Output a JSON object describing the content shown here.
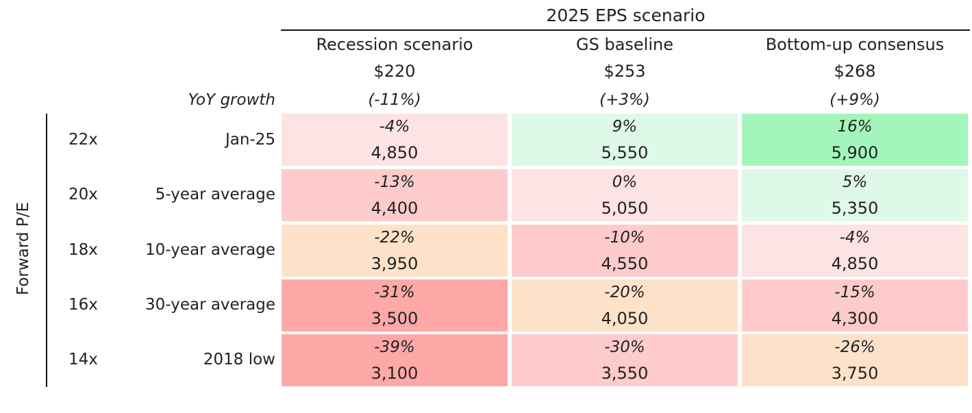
{
  "header": {
    "title": "2025 EPS scenario",
    "yoy_label": "YoY growth"
  },
  "axis": {
    "label": "Forward P/E"
  },
  "columns": [
    {
      "name": "Recession scenario",
      "eps": "$220",
      "growth": "(-11%)"
    },
    {
      "name": "GS baseline",
      "eps": "$253",
      "growth": "(+3%)"
    },
    {
      "name": "Bottom-up consensus",
      "eps": "$268",
      "growth": "(+9%)"
    }
  ],
  "rows": [
    {
      "pe": "22x",
      "label": "Jan-25"
    },
    {
      "pe": "20x",
      "label": "5-year average"
    },
    {
      "pe": "18x",
      "label": "10-year average"
    },
    {
      "pe": "16x",
      "label": "30-year average"
    },
    {
      "pe": "14x",
      "label": "2018 low"
    }
  ],
  "cells": [
    [
      {
        "pct": "-4%",
        "level": "4,850",
        "color": "#fde3e3"
      },
      {
        "pct": "9%",
        "level": "5,550",
        "color": "#dff9e8"
      },
      {
        "pct": "16%",
        "level": "5,900",
        "color": "#a3f5bb"
      }
    ],
    [
      {
        "pct": "-13%",
        "level": "4,400",
        "color": "#fecbcc"
      },
      {
        "pct": "0%",
        "level": "5,050",
        "color": "#fde3e3"
      },
      {
        "pct": "5%",
        "level": "5,350",
        "color": "#dff9e8"
      }
    ],
    [
      {
        "pct": "-22%",
        "level": "3,950",
        "color": "#fde2c9"
      },
      {
        "pct": "-10%",
        "level": "4,550",
        "color": "#fecbcc"
      },
      {
        "pct": "-4%",
        "level": "4,850",
        "color": "#fde3e3"
      }
    ],
    [
      {
        "pct": "-31%",
        "level": "3,500",
        "color": "#fea8a8"
      },
      {
        "pct": "-20%",
        "level": "4,050",
        "color": "#fde2c9"
      },
      {
        "pct": "-15%",
        "level": "4,300",
        "color": "#fecbcc"
      }
    ],
    [
      {
        "pct": "-39%",
        "level": "3,100",
        "color": "#fea8a8"
      },
      {
        "pct": "-30%",
        "level": "3,550",
        "color": "#fecbcc"
      },
      {
        "pct": "-26%",
        "level": "3,750",
        "color": "#fde2c9"
      }
    ]
  ],
  "chart_data": {
    "type": "heatmap",
    "title": "2025 EPS scenario",
    "x_categories": [
      "Recession scenario",
      "GS baseline",
      "Bottom-up consensus"
    ],
    "x_eps": [
      220,
      253,
      268
    ],
    "x_yoy_growth_pct": [
      -11,
      3,
      9
    ],
    "y_label": "Forward P/E",
    "y_multiples": [
      "22x",
      "20x",
      "18x",
      "16x",
      "14x"
    ],
    "y_categories": [
      "Jan-25",
      "5-year average",
      "10-year average",
      "30-year average",
      "2018 low"
    ],
    "index_levels": [
      [
        4850,
        5550,
        5900
      ],
      [
        4400,
        5050,
        5350
      ],
      [
        3950,
        4550,
        4850
      ],
      [
        3500,
        4050,
        4300
      ],
      [
        3100,
        3550,
        3750
      ]
    ],
    "pct_change": [
      [
        -4,
        9,
        16
      ],
      [
        -13,
        0,
        5
      ],
      [
        -22,
        -10,
        -4
      ],
      [
        -31,
        -20,
        -15
      ],
      [
        -39,
        -30,
        -26
      ]
    ]
  }
}
